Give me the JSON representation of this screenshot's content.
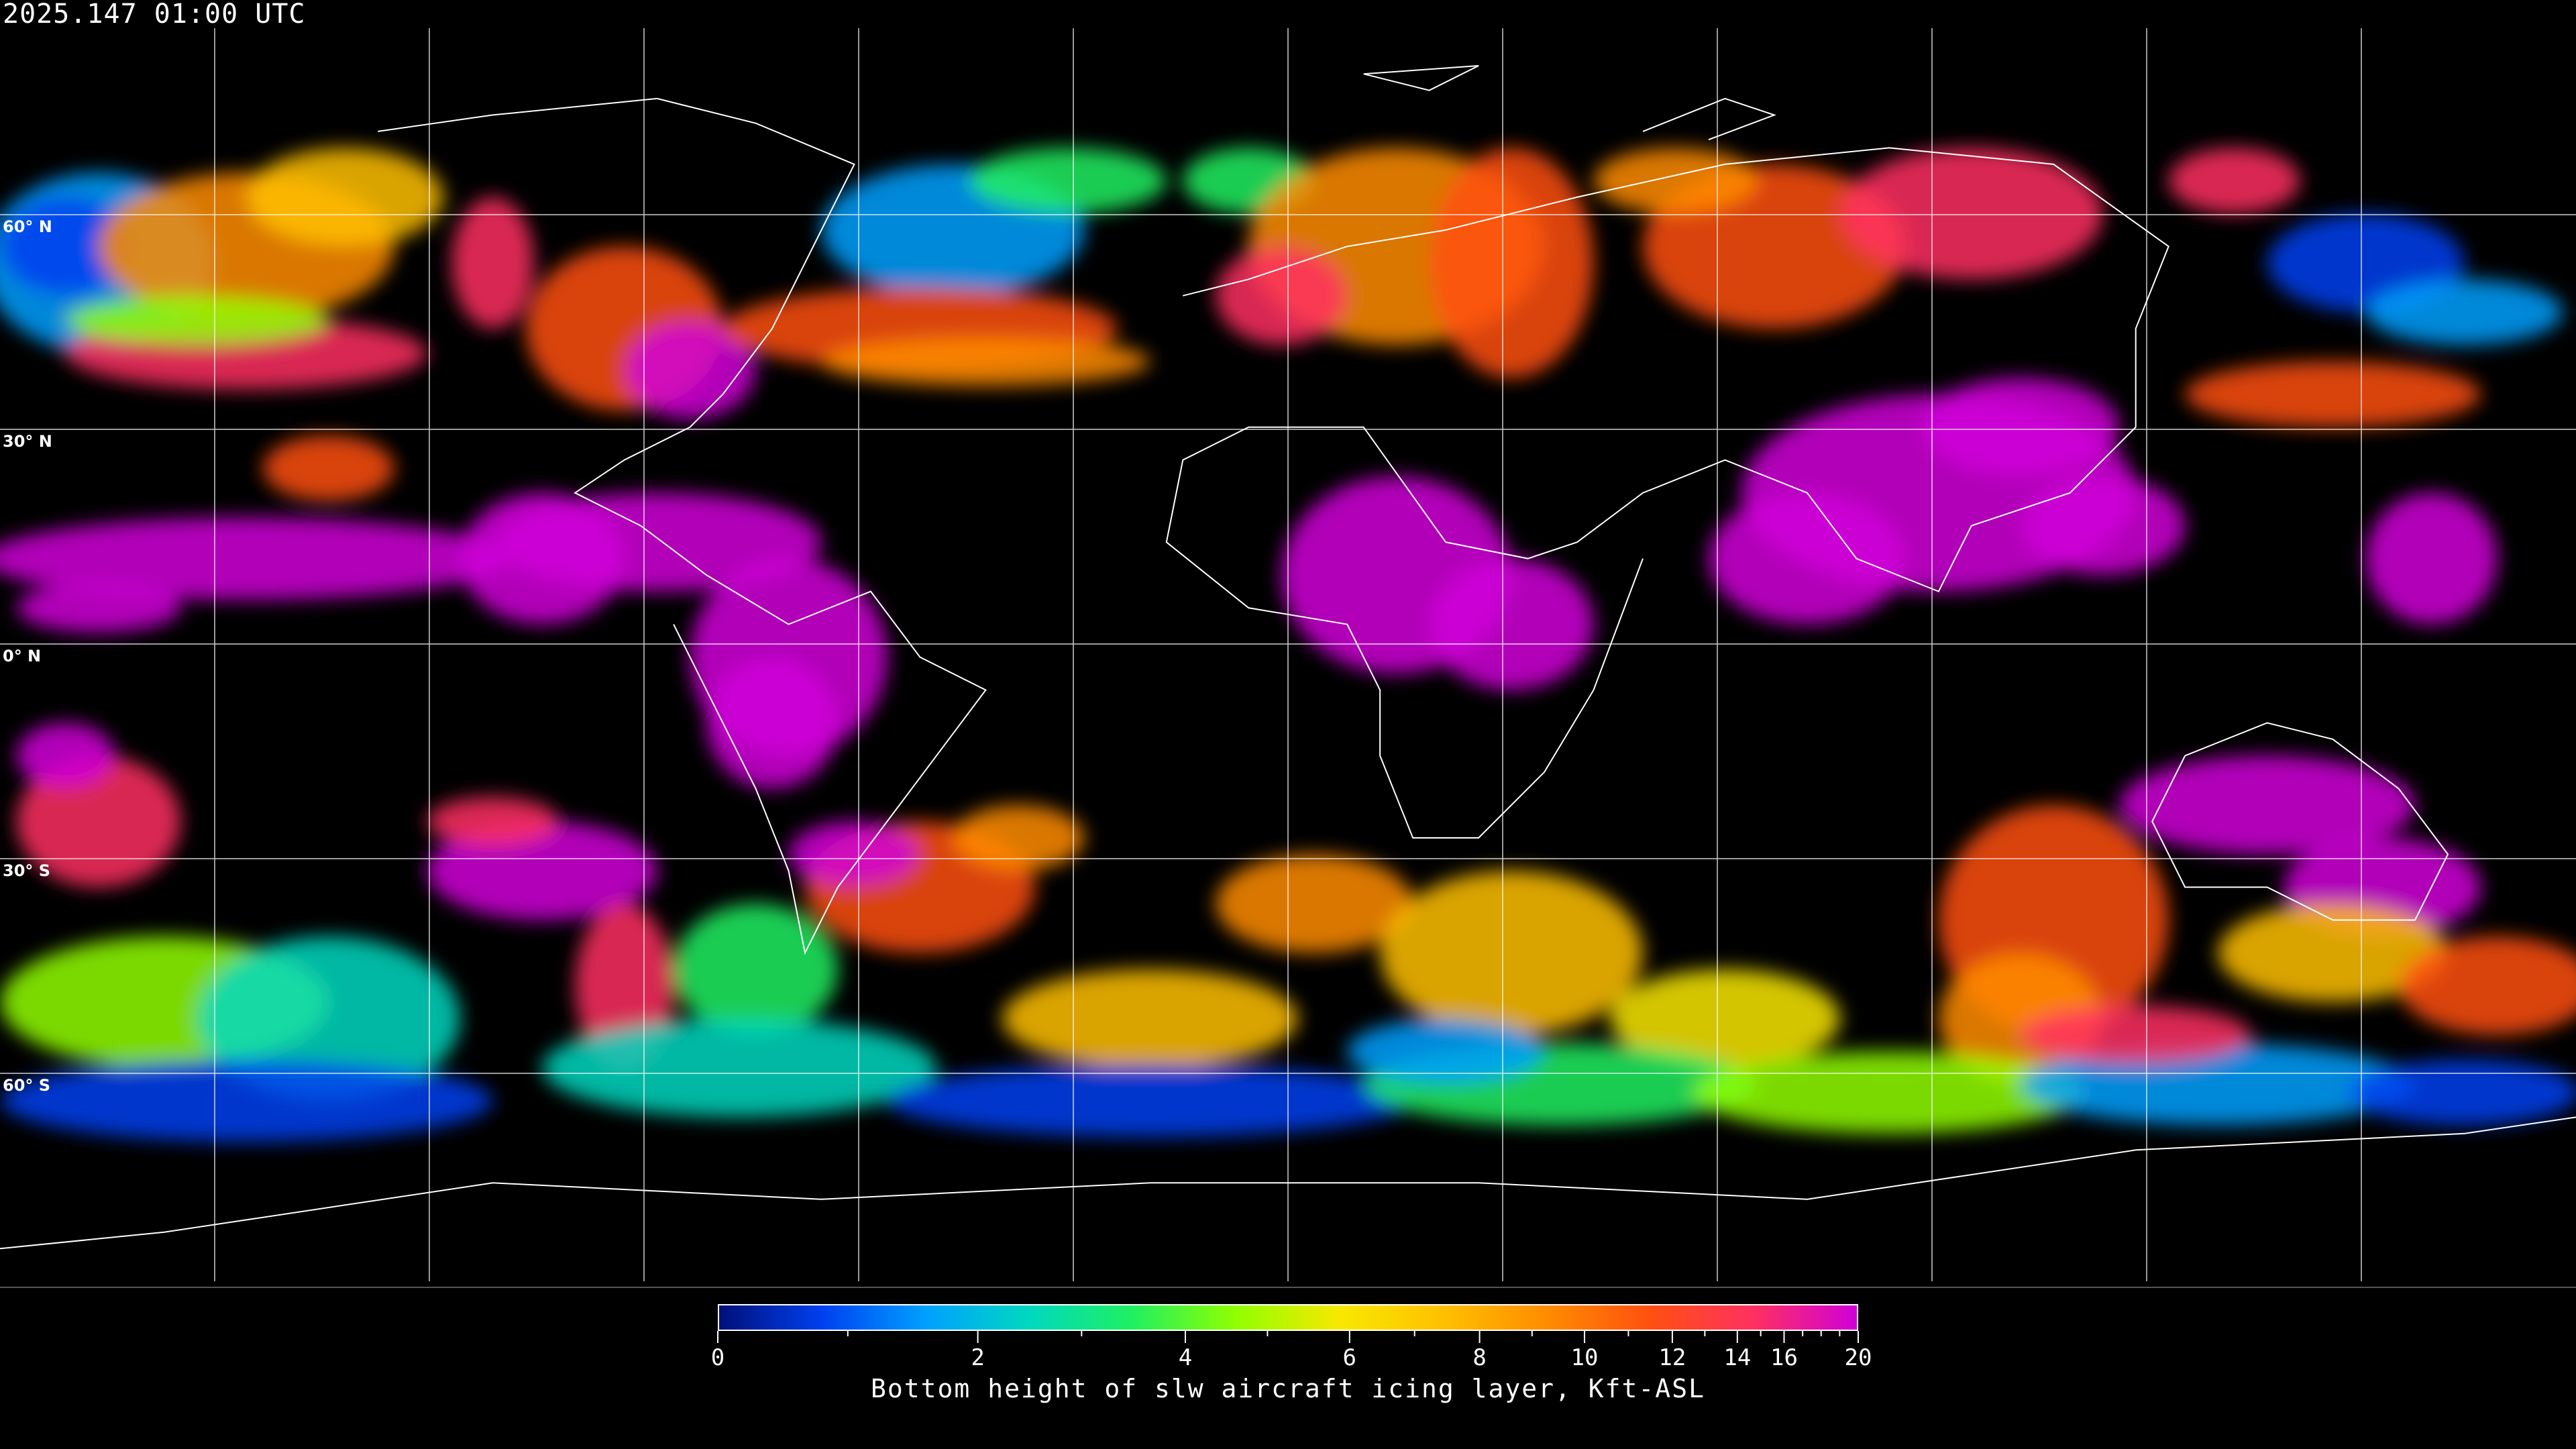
{
  "header": {
    "timestamp": "2025.147 01:00 UTC"
  },
  "map": {
    "projection": "equirectangular",
    "background_color": "#000000",
    "gridline_color": "#ffffff",
    "coastline_color": "#ffffff",
    "latitude_labels": [
      "60° N",
      "30° N",
      "0° N",
      "30° S",
      "60° S"
    ]
  },
  "colorbar": {
    "title": "Bottom height of slw aircraft icing layer, Kft-ASL",
    "tick_labels": [
      "0",
      "2",
      "4",
      "6",
      "8",
      "10",
      "12",
      "14",
      "16",
      "20"
    ],
    "tick_values": [
      0,
      2,
      4,
      6,
      8,
      10,
      12,
      14,
      16,
      20
    ],
    "minor_tick_values": [
      1,
      3,
      5,
      7,
      9,
      11,
      13,
      15,
      17,
      18,
      19
    ],
    "range": [
      0,
      20
    ],
    "colors": [
      "#00107a",
      "#0040f0",
      "#00a0ff",
      "#00d8c0",
      "#20f060",
      "#90ff00",
      "#f8e800",
      "#ffc000",
      "#ff8c00",
      "#ff5010",
      "#ff3060",
      "#d000d8"
    ]
  }
}
